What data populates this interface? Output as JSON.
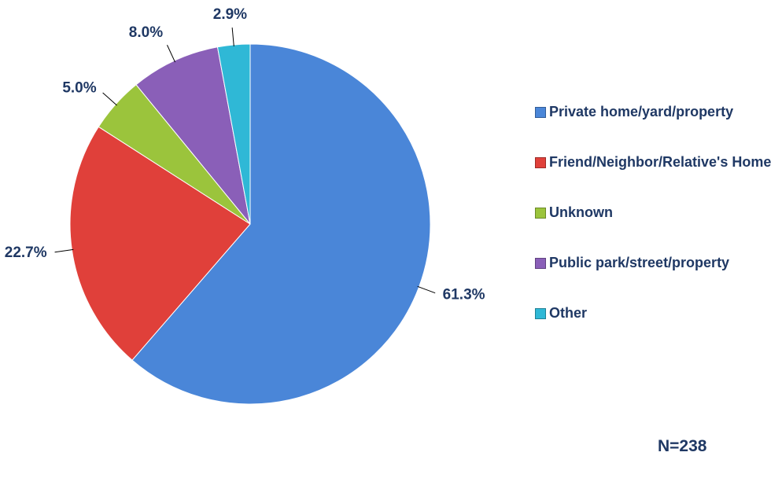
{
  "chart_data": {
    "type": "pie",
    "categories": [
      "Private home/yard/property",
      "Friend/Neighbor/Relative's Home",
      "Unknown",
      "Public park/street/property",
      "Other"
    ],
    "values": [
      61.3,
      22.7,
      5.0,
      8.0,
      2.9
    ],
    "value_labels": [
      "61.3%",
      "22.7%",
      "5.0%",
      "8.0%",
      "2.9%"
    ],
    "colors": [
      "#4a86d8",
      "#e0403a",
      "#9bc43c",
      "#8a5fb8",
      "#2fb8d6"
    ],
    "legend": "right",
    "annotations": [
      "N=238"
    ]
  }
}
